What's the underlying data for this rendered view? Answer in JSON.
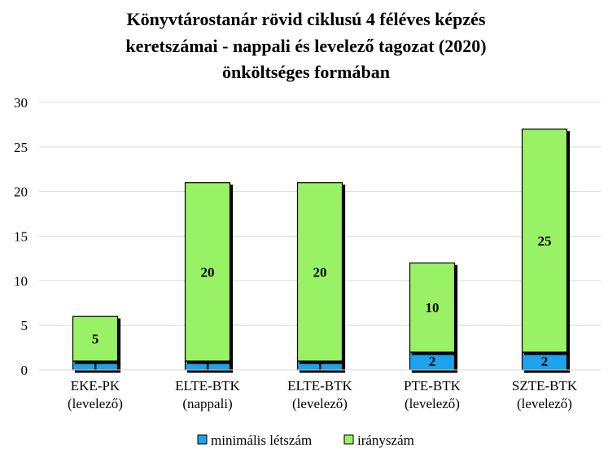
{
  "chart_data": {
    "type": "bar",
    "stacked": true,
    "title_lines": [
      "Könyvtárostanár rövid ciklusú 4 féléves képzés",
      "keretszámai - nappali és levelező tagozat (2020)",
      "önköltséges formában"
    ],
    "categories": [
      [
        "EKE-PK",
        "(levelező)"
      ],
      [
        "ELTE-BTK",
        "(nappali)"
      ],
      [
        "ELTE-BTK",
        "(levelező)"
      ],
      [
        "PTE-BTK",
        "(levelező)"
      ],
      [
        "SZTE-BTK",
        "(levelező)"
      ]
    ],
    "series": [
      {
        "name": "minimális létszám",
        "color": "#1CA3EC",
        "values": [
          1,
          1,
          1,
          2,
          2
        ]
      },
      {
        "name": "irányszám",
        "color": "#99F165",
        "values": [
          5,
          20,
          20,
          10,
          25
        ]
      }
    ],
    "ylim": [
      0,
      30
    ],
    "yticks": [
      0,
      5,
      10,
      15,
      20,
      25,
      30
    ],
    "grid": true,
    "legend_position": "bottom"
  }
}
